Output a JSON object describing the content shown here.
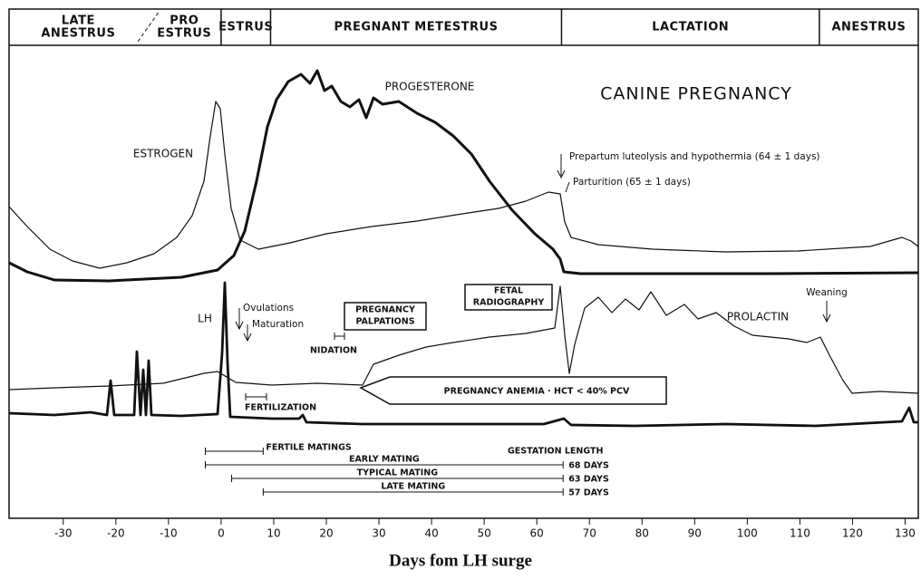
{
  "chart_data": {
    "type": "timeline",
    "title": "CANINE PREGNANCY",
    "xlabel": "Days fom LH surge",
    "xlim": [
      -40.3,
      132.5
    ],
    "xticks": [
      -30,
      -20,
      -10,
      0,
      10,
      20,
      30,
      40,
      50,
      60,
      70,
      80,
      90,
      100,
      110,
      120,
      130
    ],
    "phases": [
      {
        "lines": [
          "LATE",
          "ANESTRUS"
        ],
        "start": -40.3,
        "end": -14
      },
      {
        "lines": [
          "PRO",
          "ESTRUS"
        ],
        "start": -14,
        "end": 0,
        "dashed_start": true
      },
      {
        "lines": [
          "ESTRUS"
        ],
        "start": 0,
        "end": 9.4
      },
      {
        "lines": [
          "PREGNANT  METESTRUS"
        ],
        "start": 9.4,
        "end": 64.7
      },
      {
        "lines": [
          "LACTATION"
        ],
        "start": 64.7,
        "end": 113.7
      },
      {
        "lines": [
          "ANESTRUS"
        ],
        "start": 113.7,
        "end": 132.5
      }
    ],
    "curve_labels": [
      "ESTROGEN",
      "PROGESTERONE",
      "LH",
      "PROLACTIN"
    ],
    "annotations": [
      "Prepartum luteolysis and hypothermia  (64 ± 1 days)",
      "Parturition  (65 ± 1 days)",
      "Ovulations",
      "Maturation",
      "NIDATION",
      "FERTILIZATION",
      "Weaning"
    ],
    "boxes": [
      [
        "PREGNANCY",
        "PALPATIONS"
      ],
      [
        "FETAL",
        "RADIOGRAPHY"
      ],
      [
        "PREGNANCY ANEMIA  ·  HCT < 40% PCV"
      ]
    ],
    "matings_title": "GESTATION LENGTH",
    "matings": [
      {
        "label": "FERTILE MATINGS",
        "start": -3,
        "end": 8
      },
      {
        "label": "EARLY  MATING",
        "start": -3,
        "end": 65,
        "length": "68 DAYS"
      },
      {
        "label": "TYPICAL  MATING",
        "start": 2,
        "end": 65,
        "length": "63 DAYS"
      },
      {
        "label": "LATE  MATING",
        "start": 8,
        "end": 65,
        "length": "57 DAYS"
      }
    ]
  }
}
